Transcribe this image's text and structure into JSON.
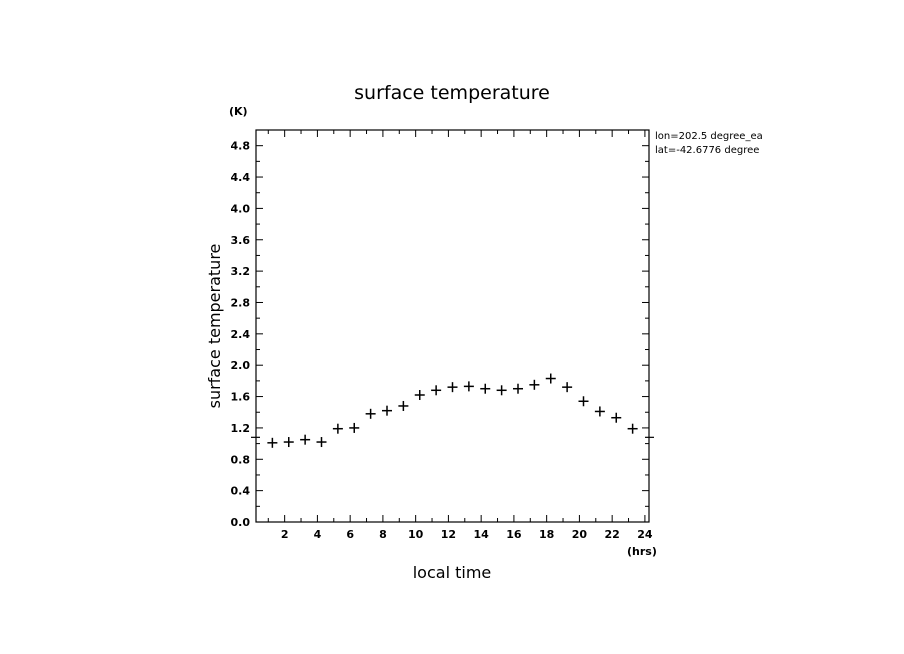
{
  "chart_data": {
    "type": "scatter",
    "title": "surface temperature",
    "xlabel": "local time",
    "ylabel": "surface temperature",
    "xunit": "(hrs)",
    "yunit": "(K)",
    "xlim": [
      0.25,
      24.25
    ],
    "ylim": [
      0,
      5.0
    ],
    "xticks": [
      2,
      4,
      6,
      8,
      10,
      12,
      14,
      16,
      18,
      20,
      22,
      24
    ],
    "yticks": [
      0.0,
      0.4,
      0.8,
      1.2,
      1.6,
      2.0,
      2.4,
      2.8,
      3.2,
      3.6,
      4.0,
      4.4,
      4.8
    ],
    "ytick_labels": [
      "0.0",
      "0.4",
      "0.8",
      "1.2",
      "1.6",
      "2.0",
      "2.4",
      "2.8",
      "3.2",
      "3.6",
      "4.0",
      "4.4",
      "4.8"
    ],
    "grid": false,
    "marker": "+",
    "reference_level": 1.08,
    "annotations": [
      "lon=202.5 degree_ea",
      "lat=-42.6776 degree"
    ],
    "series": [
      {
        "x": [
          1.25,
          2.25,
          3.25,
          4.25,
          5.25,
          6.25,
          7.25,
          8.25,
          9.25,
          10.25,
          11.25,
          12.25,
          13.25,
          14.25,
          15.25,
          16.25,
          17.25,
          18.25,
          19.25,
          20.25,
          21.25,
          22.25,
          23.25
        ],
        "y": [
          1.01,
          1.02,
          1.05,
          1.02,
          1.19,
          1.2,
          1.38,
          1.42,
          1.48,
          1.62,
          1.68,
          1.72,
          1.73,
          1.7,
          1.68,
          1.7,
          1.75,
          1.83,
          1.72,
          1.54,
          1.41,
          1.33,
          1.19
        ]
      }
    ]
  }
}
